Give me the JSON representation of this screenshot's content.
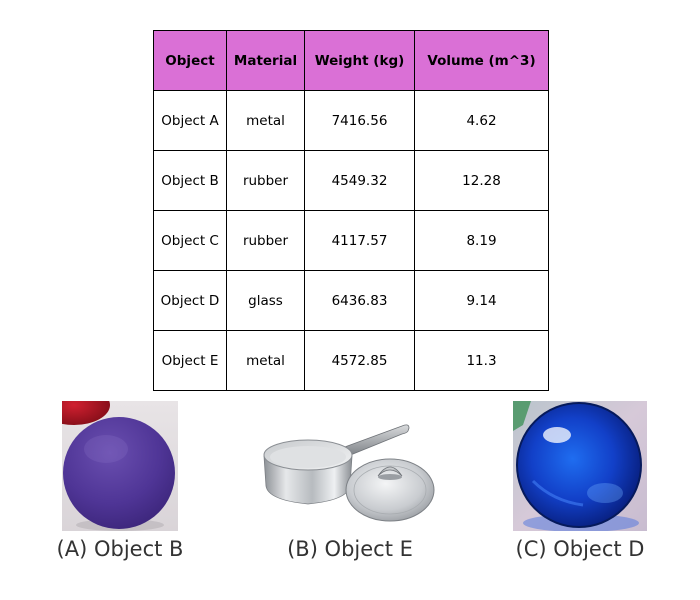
{
  "table": {
    "headers": [
      "Object",
      "Material",
      "Weight (kg)",
      "Volume (m^3)"
    ],
    "rows": [
      [
        "Object A",
        "metal",
        "7416.56",
        "4.62"
      ],
      [
        "Object B",
        "rubber",
        "4549.32",
        "12.28"
      ],
      [
        "Object C",
        "rubber",
        "4117.57",
        "8.19"
      ],
      [
        "Object D",
        "glass",
        "6436.83",
        "9.14"
      ],
      [
        "Object E",
        "metal",
        "4572.85",
        "11.3"
      ]
    ],
    "header_color": "#DA70D6"
  },
  "images": [
    {
      "caption": "(A) Object B",
      "depicts": "purple rubber ball"
    },
    {
      "caption": "(B) Object E",
      "depicts": "stainless steel saucepan with lid"
    },
    {
      "caption": "(C) Object D",
      "depicts": "blue glass sphere"
    }
  ]
}
